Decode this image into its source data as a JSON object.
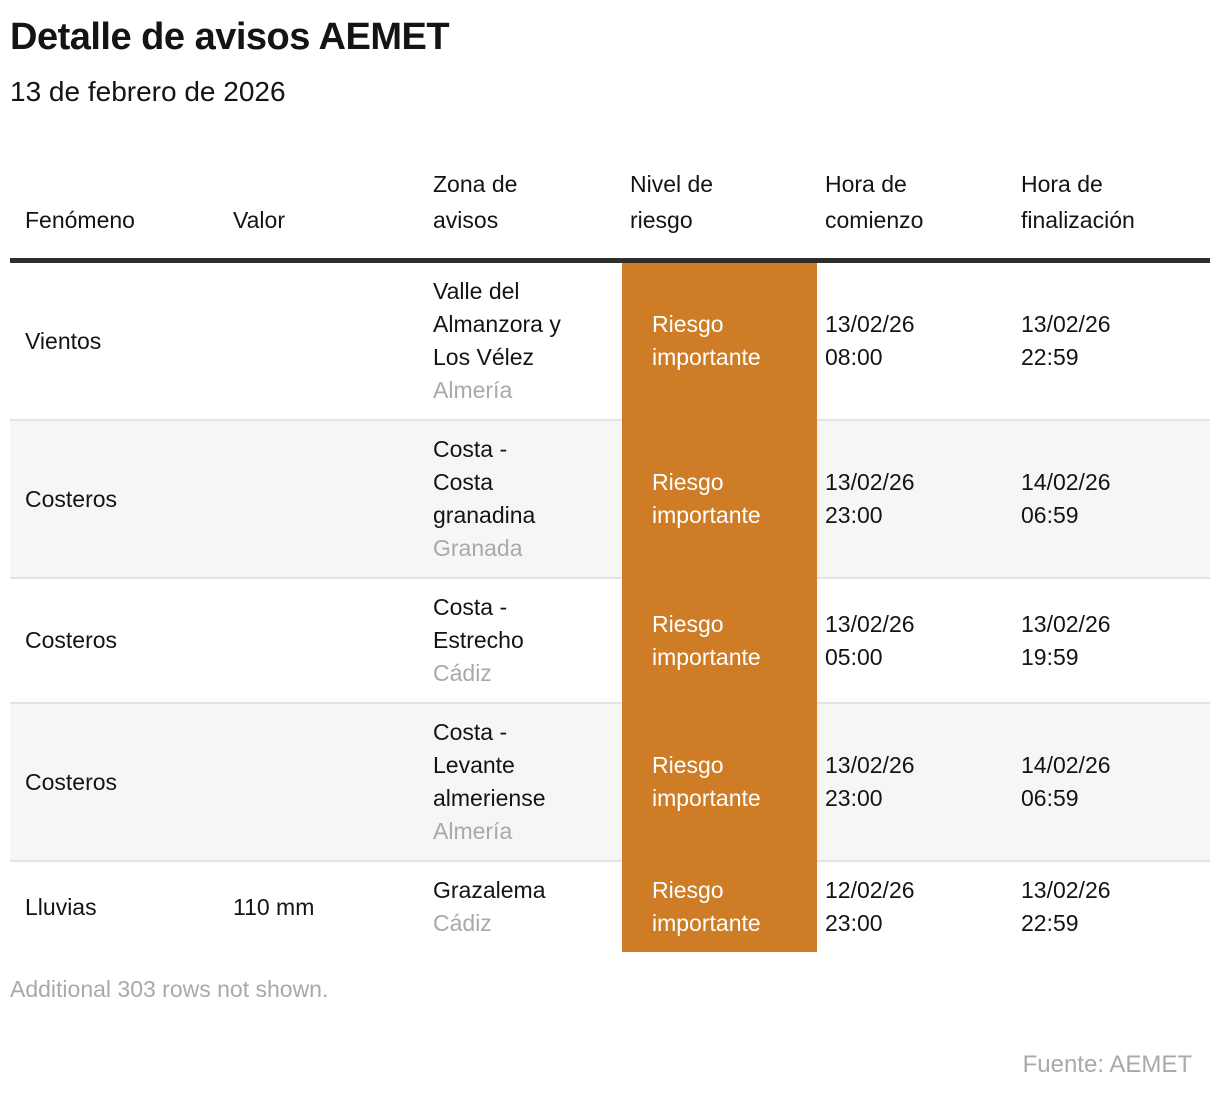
{
  "title": "Detalle de avisos AEMET",
  "subtitle": "13 de febrero de 2026",
  "colors": {
    "risk_orange": "#CE7D26",
    "header_rule": "#2E2E2E",
    "row_alt": "#F6F6F5",
    "divider": "#E3E3E3",
    "muted": "#A9A9A9",
    "text": "#141414"
  },
  "table": {
    "headers": {
      "fenomeno": [
        "Fenómeno"
      ],
      "valor": [
        "Valor"
      ],
      "zona": [
        "Zona de",
        "avisos"
      ],
      "nivel": [
        "Nivel de",
        "riesgo"
      ],
      "comienzo": [
        "Hora de",
        "comienzo"
      ],
      "finalizacion": [
        "Hora de",
        "finalización"
      ]
    },
    "rows": [
      {
        "fenomeno": "Vientos",
        "valor": "",
        "zona_lines": [
          "Valle del",
          "Almanzora y",
          "Los Vélez"
        ],
        "provincia": "Almería",
        "nivel": "Riesgo importante",
        "comienzo_fecha": "13/02/26",
        "comienzo_hora": "08:00",
        "fin_fecha": "13/02/26",
        "fin_hora": "22:59"
      },
      {
        "fenomeno": "Costeros",
        "valor": "",
        "zona_lines": [
          "Costa -",
          "Costa",
          "granadina"
        ],
        "provincia": "Granada",
        "nivel": "Riesgo importante",
        "comienzo_fecha": "13/02/26",
        "comienzo_hora": "23:00",
        "fin_fecha": "14/02/26",
        "fin_hora": "06:59"
      },
      {
        "fenomeno": "Costeros",
        "valor": "",
        "zona_lines": [
          "Costa -",
          "Estrecho"
        ],
        "provincia": "Cádiz",
        "nivel": "Riesgo importante",
        "comienzo_fecha": "13/02/26",
        "comienzo_hora": "05:00",
        "fin_fecha": "13/02/26",
        "fin_hora": "19:59"
      },
      {
        "fenomeno": "Costeros",
        "valor": "",
        "zona_lines": [
          "Costa -",
          "Levante",
          "almeriense"
        ],
        "provincia": "Almería",
        "nivel": "Riesgo importante",
        "comienzo_fecha": "13/02/26",
        "comienzo_hora": "23:00",
        "fin_fecha": "14/02/26",
        "fin_hora": "06:59"
      },
      {
        "fenomeno": "Lluvias",
        "valor": "110 mm",
        "zona_lines": [
          "Grazalema"
        ],
        "provincia": "Cádiz",
        "nivel": "Riesgo importante",
        "comienzo_fecha": "12/02/26",
        "comienzo_hora": "23:00",
        "fin_fecha": "13/02/26",
        "fin_hora": "22:59"
      }
    ]
  },
  "footnote": "Additional 303 rows not shown.",
  "source": "Fuente: AEMET",
  "chart_data": {
    "type": "table",
    "title": "Detalle de avisos AEMET",
    "subtitle": "13 de febrero de 2026",
    "columns": [
      "Fenómeno",
      "Valor",
      "Zona de avisos",
      "Nivel de riesgo",
      "Hora de comienzo",
      "Hora de finalización"
    ],
    "rows": [
      [
        "Vientos",
        "",
        "Valle del Almanzora y Los Vélez (Almería)",
        "Riesgo importante",
        "13/02/26 08:00",
        "13/02/26 22:59"
      ],
      [
        "Costeros",
        "",
        "Costa - Costa granadina (Granada)",
        "Riesgo importante",
        "13/02/26 23:00",
        "14/02/26 06:59"
      ],
      [
        "Costeros",
        "",
        "Costa - Estrecho (Cádiz)",
        "Riesgo importante",
        "13/02/26 05:00",
        "13/02/26 19:59"
      ],
      [
        "Costeros",
        "",
        "Costa - Levante almeriense (Almería)",
        "Riesgo importante",
        "13/02/26 23:00",
        "14/02/26 06:59"
      ],
      [
        "Lluvias",
        "110 mm",
        "Grazalema (Cádiz)",
        "Riesgo importante",
        "12/02/26 23:00",
        "13/02/26 22:59"
      ]
    ],
    "highlight": {
      "column": "Nivel de riesgo",
      "value": "Riesgo importante",
      "color": "#CE7D26"
    },
    "notes": [
      "Additional 303 rows not shown.",
      "Fuente: AEMET"
    ]
  }
}
